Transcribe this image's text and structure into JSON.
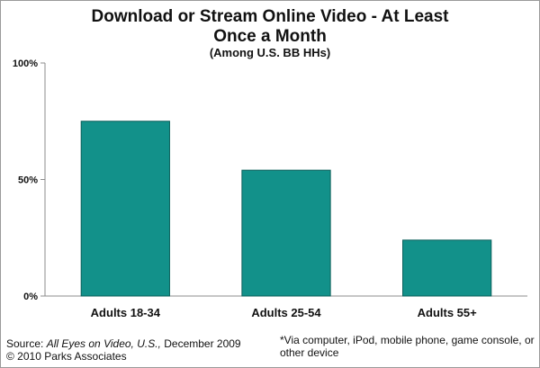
{
  "chart_data": {
    "type": "bar",
    "title_line1": "Download or Stream Online Video - At Least",
    "title_line2": "Once a Month",
    "subtitle": "(Among U.S. BB HHs)",
    "categories": [
      "Adults 18-34",
      "Adults 25-54",
      "Adults 55+"
    ],
    "values": [
      75,
      54,
      24
    ],
    "y_ticks": [
      {
        "value": 0,
        "label": "0%"
      },
      {
        "value": 50,
        "label": "50%"
      },
      {
        "value": 100,
        "label": "100%"
      }
    ],
    "ylim": [
      0,
      100
    ],
    "xlabel": "",
    "ylabel": "",
    "grid": false,
    "bar_color": "#12918a",
    "bar_edge_color": "#0b5f5a"
  },
  "footer": {
    "source_prefix": "Source:  ",
    "source_title": "All Eyes on Video, U.S.,",
    "source_date": " December 2009",
    "copyright": "© 2010 Parks Associates",
    "footnote": "*Via computer, iPod, mobile phone, game console, or other device"
  }
}
